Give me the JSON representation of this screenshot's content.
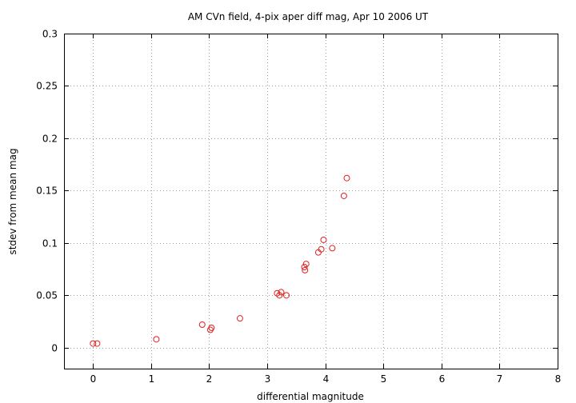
{
  "chart_data": {
    "type": "scatter",
    "title": "AM CVn field,  4-pix aper diff mag, Apr 10 2006 UT",
    "xlabel": "differential magnitude",
    "ylabel": "stdev from mean mag",
    "xlim": [
      -0.5,
      8
    ],
    "ylim": [
      -0.02,
      0.3
    ],
    "x_ticks": [
      0,
      1,
      2,
      3,
      4,
      5,
      6,
      7,
      8
    ],
    "x_tick_labels": [
      "0",
      "1",
      "2",
      "3",
      "4",
      "5",
      "6",
      "7",
      "8"
    ],
    "y_ticks": [
      0,
      0.05,
      0.1,
      0.15,
      0.2,
      0.25,
      0.3
    ],
    "y_tick_labels": [
      "0",
      "0.05",
      "0.1",
      "0.15",
      "0.2",
      "0.25",
      "0.3"
    ],
    "grid": true,
    "legend": "none",
    "marker": "open-circle",
    "marker_color": "#e02020",
    "points": [
      {
        "x": 0.0,
        "y": 0.004
      },
      {
        "x": 0.07,
        "y": 0.004
      },
      {
        "x": 1.09,
        "y": 0.008
      },
      {
        "x": 1.88,
        "y": 0.022
      },
      {
        "x": 2.02,
        "y": 0.017
      },
      {
        "x": 2.04,
        "y": 0.019
      },
      {
        "x": 2.53,
        "y": 0.028
      },
      {
        "x": 3.17,
        "y": 0.052
      },
      {
        "x": 3.21,
        "y": 0.05
      },
      {
        "x": 3.24,
        "y": 0.053
      },
      {
        "x": 3.33,
        "y": 0.05
      },
      {
        "x": 3.64,
        "y": 0.077
      },
      {
        "x": 3.65,
        "y": 0.074
      },
      {
        "x": 3.67,
        "y": 0.08
      },
      {
        "x": 3.88,
        "y": 0.091
      },
      {
        "x": 3.93,
        "y": 0.094
      },
      {
        "x": 3.97,
        "y": 0.103
      },
      {
        "x": 4.12,
        "y": 0.095
      },
      {
        "x": 4.32,
        "y": 0.145
      },
      {
        "x": 4.37,
        "y": 0.162
      }
    ]
  }
}
